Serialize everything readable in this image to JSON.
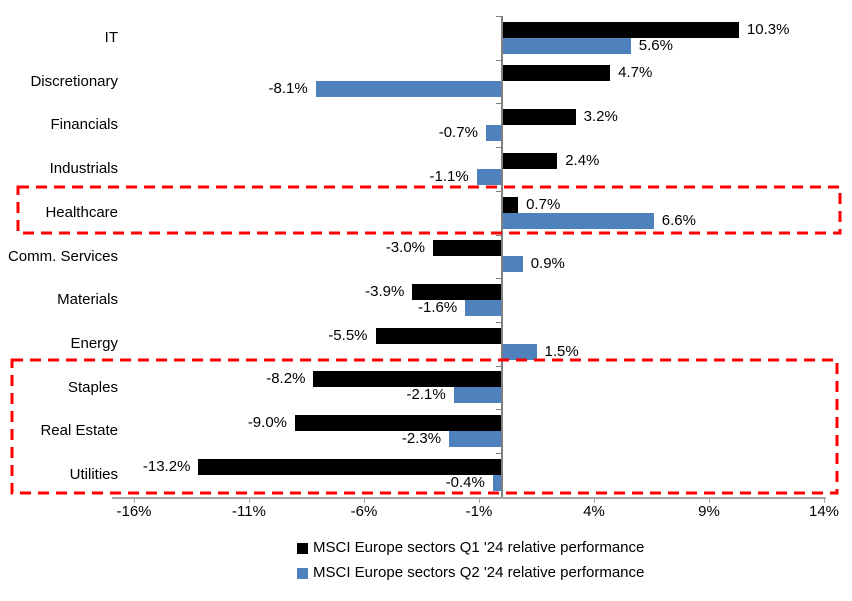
{
  "chart_data": {
    "type": "bar",
    "orientation": "horizontal",
    "title": "",
    "categories": [
      "IT",
      "Discretionary",
      "Financials",
      "Industrials",
      "Healthcare",
      "Comm. Services",
      "Materials",
      "Energy",
      "Staples",
      "Real Estate",
      "Utilities"
    ],
    "series": [
      {
        "name": "MSCI Europe sectors Q1 '24 relative performance",
        "color": "#000000",
        "values": [
          10.3,
          4.7,
          3.2,
          2.4,
          0.7,
          -3.0,
          -3.9,
          -5.5,
          -8.2,
          -9.0,
          -13.2
        ],
        "labels": [
          "10.3%",
          "4.7%",
          "3.2%",
          "2.4%",
          "0.7%",
          "-3.0%",
          "-3.9%",
          "-5.5%",
          "-8.2%",
          "-9.0%",
          "-13.2%"
        ]
      },
      {
        "name": "MSCI Europe sectors Q2 '24 relative performance",
        "color": "#4F81BD",
        "values": [
          5.6,
          -8.1,
          -0.7,
          -1.1,
          6.6,
          0.9,
          -1.6,
          1.5,
          -2.1,
          -2.3,
          -0.4
        ],
        "labels": [
          "5.6%",
          "-8.1%",
          "-0.7%",
          "-1.1%",
          "6.6%",
          "0.9%",
          "-1.6%",
          "1.5%",
          "-2.1%",
          "-2.3%",
          "-0.4%"
        ]
      }
    ],
    "x_ticks": {
      "values": [
        -16,
        -11,
        -6,
        -1,
        4,
        9,
        14
      ],
      "labels": [
        "-16%",
        "-11%",
        "-6%",
        "-1%",
        "4%",
        "9%",
        "14%"
      ]
    },
    "xlim": [
      -17,
      14.2
    ],
    "grid": false,
    "legend_position": "bottom",
    "highlights": [
      {
        "name": "highlight-box-healthcare",
        "rows": [
          "Healthcare"
        ],
        "color": "#FF0000"
      },
      {
        "name": "highlight-box-defensives",
        "rows": [
          "Staples",
          "Real Estate",
          "Utilities"
        ],
        "color": "#FF0000"
      }
    ],
    "axis_colors": {
      "x_axis": "#A6A6A6",
      "y_axis": "#808080"
    }
  }
}
